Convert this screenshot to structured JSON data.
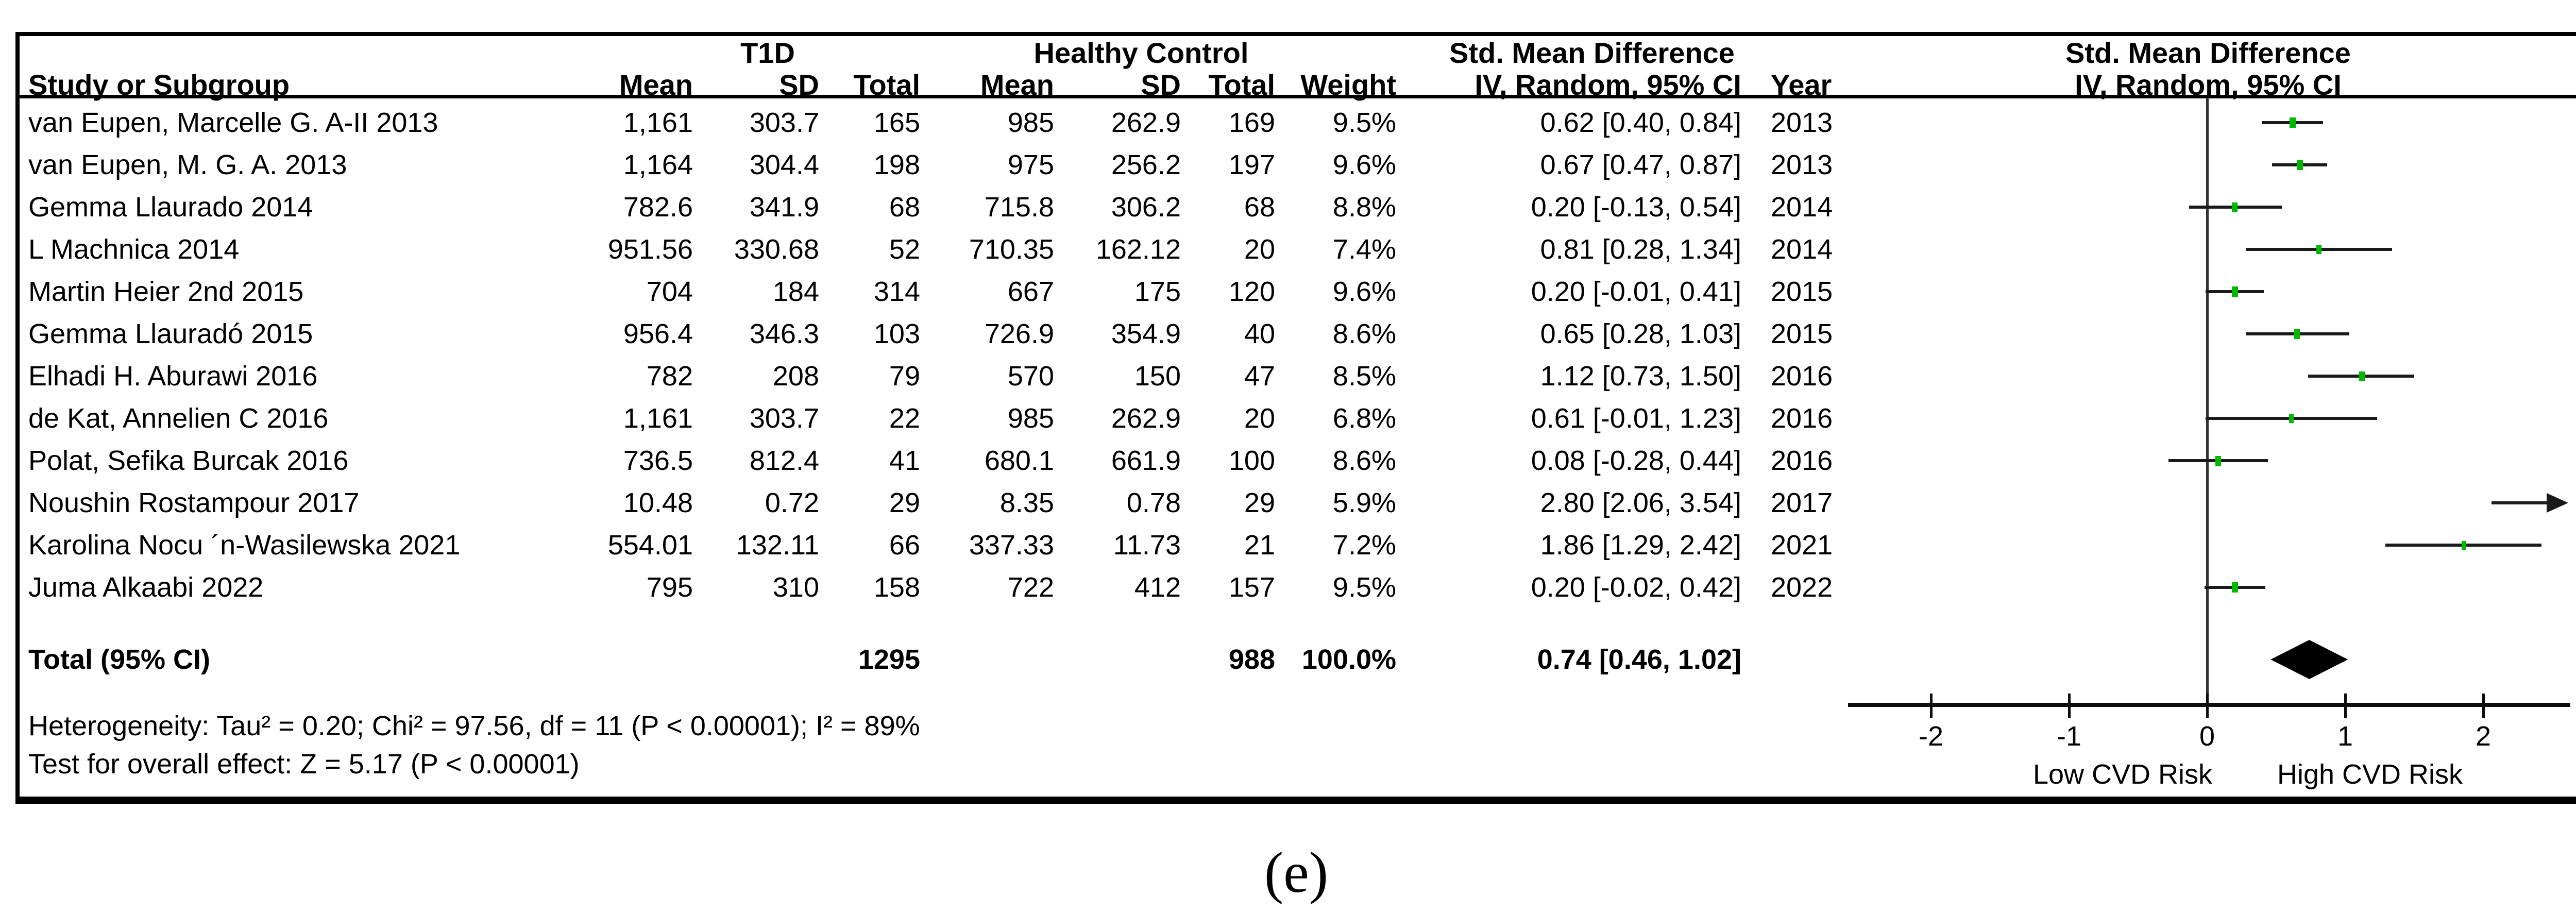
{
  "chart_data": {
    "type": "forest",
    "effect_measure": "Std. Mean Difference",
    "model_label": "IV, Random, 95% CI",
    "groups": {
      "experimental": "T1D",
      "control": "Healthy Control"
    },
    "columns": {
      "study": "Study or Subgroup",
      "mean": "Mean",
      "sd": "SD",
      "total": "Total",
      "weight": "Weight",
      "ci": "IV, Random, 95% CI",
      "year": "Year",
      "smd": "Std. Mean Difference"
    },
    "studies": [
      {
        "name": "van Eupen, Marcelle G. A-II 2013",
        "mean1": "1,161",
        "sd1": "303.7",
        "total1": "165",
        "mean2": "985",
        "sd2": "262.9",
        "total2": "169",
        "weight": "9.5%",
        "ci_text": "0.62 [0.40, 0.84]",
        "year": "2013",
        "est": 0.62,
        "lo": 0.4,
        "hi": 0.84
      },
      {
        "name": "van Eupen, M. G. A. 2013",
        "mean1": "1,164",
        "sd1": "304.4",
        "total1": "198",
        "mean2": "975",
        "sd2": "256.2",
        "total2": "197",
        "weight": "9.6%",
        "ci_text": "0.67 [0.47, 0.87]",
        "year": "2013",
        "est": 0.67,
        "lo": 0.47,
        "hi": 0.87
      },
      {
        "name": "Gemma Llaurado 2014",
        "mean1": "782.6",
        "sd1": "341.9",
        "total1": "68",
        "mean2": "715.8",
        "sd2": "306.2",
        "total2": "68",
        "weight": "8.8%",
        "ci_text": "0.20 [-0.13, 0.54]",
        "year": "2014",
        "est": 0.2,
        "lo": -0.13,
        "hi": 0.54
      },
      {
        "name": "L Machnica 2014",
        "mean1": "951.56",
        "sd1": "330.68",
        "total1": "52",
        "mean2": "710.35",
        "sd2": "162.12",
        "total2": "20",
        "weight": "7.4%",
        "ci_text": "0.81 [0.28, 1.34]",
        "year": "2014",
        "est": 0.81,
        "lo": 0.28,
        "hi": 1.34
      },
      {
        "name": "Martin Heier 2nd 2015",
        "mean1": "704",
        "sd1": "184",
        "total1": "314",
        "mean2": "667",
        "sd2": "175",
        "total2": "120",
        "weight": "9.6%",
        "ci_text": "0.20 [-0.01, 0.41]",
        "year": "2015",
        "est": 0.2,
        "lo": -0.01,
        "hi": 0.41
      },
      {
        "name": "Gemma Llauradó 2015",
        "mean1": "956.4",
        "sd1": "346.3",
        "total1": "103",
        "mean2": "726.9",
        "sd2": "354.9",
        "total2": "40",
        "weight": "8.6%",
        "ci_text": "0.65 [0.28, 1.03]",
        "year": "2015",
        "est": 0.65,
        "lo": 0.28,
        "hi": 1.03
      },
      {
        "name": "Elhadi H. Aburawi 2016",
        "mean1": "782",
        "sd1": "208",
        "total1": "79",
        "mean2": "570",
        "sd2": "150",
        "total2": "47",
        "weight": "8.5%",
        "ci_text": "1.12 [0.73, 1.50]",
        "year": "2016",
        "est": 1.12,
        "lo": 0.73,
        "hi": 1.5
      },
      {
        "name": "de Kat, Annelien C 2016",
        "mean1": "1,161",
        "sd1": "303.7",
        "total1": "22",
        "mean2": "985",
        "sd2": "262.9",
        "total2": "20",
        "weight": "6.8%",
        "ci_text": "0.61 [-0.01, 1.23]",
        "year": "2016",
        "est": 0.61,
        "lo": -0.01,
        "hi": 1.23
      },
      {
        "name": "Polat, Sefika Burcak 2016",
        "mean1": "736.5",
        "sd1": "812.4",
        "total1": "41",
        "mean2": "680.1",
        "sd2": "661.9",
        "total2": "100",
        "weight": "8.6%",
        "ci_text": "0.08 [-0.28, 0.44]",
        "year": "2016",
        "est": 0.08,
        "lo": -0.28,
        "hi": 0.44
      },
      {
        "name": "Noushin Rostampour 2017",
        "mean1": "10.48",
        "sd1": "0.72",
        "total1": "29",
        "mean2": "8.35",
        "sd2": "0.78",
        "total2": "29",
        "weight": "5.9%",
        "ci_text": "2.80 [2.06, 3.54]",
        "year": "2017",
        "est": 2.8,
        "lo": 2.06,
        "hi": 3.54
      },
      {
        "name": "Karolina Nocu ´n-Wasilewska 2021",
        "mean1": "554.01",
        "sd1": "132.11",
        "total1": "66",
        "mean2": "337.33",
        "sd2": "11.73",
        "total2": "21",
        "weight": "7.2%",
        "ci_text": "1.86 [1.29, 2.42]",
        "year": "2021",
        "est": 1.86,
        "lo": 1.29,
        "hi": 2.42
      },
      {
        "name": "Juma Alkaabi 2022",
        "mean1": "795",
        "sd1": "310",
        "total1": "158",
        "mean2": "722",
        "sd2": "412",
        "total2": "157",
        "weight": "9.5%",
        "ci_text": "0.20 [-0.02, 0.42]",
        "year": "2022",
        "est": 0.2,
        "lo": -0.02,
        "hi": 0.42
      }
    ],
    "total_row": {
      "label": "Total (95% CI)",
      "total1": "1295",
      "total2": "988",
      "weight": "100.0%",
      "ci_text": "0.74 [0.46, 1.02]",
      "est": 0.74,
      "lo": 0.46,
      "hi": 1.02
    },
    "footer": {
      "heterogeneity": "Heterogeneity: Tau² = 0.20; Chi² = 97.56, df = 11 (P < 0.00001); I² = 89%",
      "overall_effect": "Test for overall effect: Z = 5.17 (P < 0.00001)"
    },
    "axis": {
      "ticks": [
        -2,
        -1,
        0,
        1,
        2
      ],
      "xmin": -2.6,
      "xmax": 2.6,
      "left_label": "Low CVD Risk",
      "right_label": "High CVD Risk"
    },
    "caption": "(e)",
    "colors": {
      "marker": "#00b800",
      "line": "#1a1a1a"
    }
  }
}
